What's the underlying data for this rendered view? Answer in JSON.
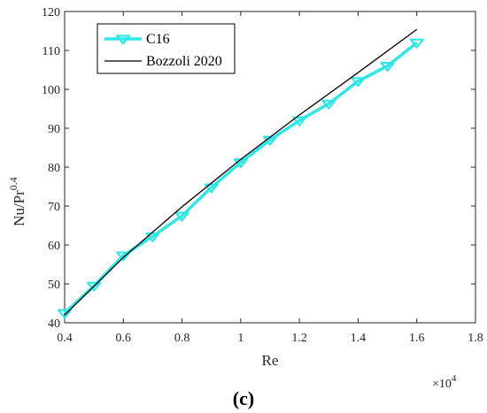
{
  "chart_data": {
    "type": "line",
    "xlabel": "Re",
    "ylabel_base": "Nu/Pr",
    "ylabel_exp": "0.4",
    "x_multiplier": "×10",
    "x_multiplier_exp": "4",
    "xlim": [
      0.4,
      1.8
    ],
    "ylim": [
      40,
      120
    ],
    "xticks": [
      "0.4",
      "0.6",
      "0.8",
      "1",
      "1.2",
      "1.4",
      "1.6",
      "1.8"
    ],
    "yticks": [
      "40",
      "50",
      "60",
      "70",
      "80",
      "90",
      "100",
      "110",
      "120"
    ],
    "grid": false,
    "legend_position": "top-left",
    "series": [
      {
        "name": "C16",
        "color": "#33e6e6",
        "marker": "triangle-down",
        "x": [
          0.4,
          0.5,
          0.6,
          0.7,
          0.8,
          0.9,
          1.0,
          1.1,
          1.2,
          1.3,
          1.4,
          1.5,
          1.6
        ],
        "y": [
          42.5,
          49.5,
          57.3,
          62.2,
          67.5,
          74.8,
          81.2,
          87.0,
          92.0,
          96.3,
          102.1,
          106.0,
          112.0
        ]
      },
      {
        "name": "Bozzoli 2020",
        "color": "#000000",
        "marker": "none",
        "x": [
          0.4,
          0.6,
          0.8,
          1.0,
          1.2,
          1.4,
          1.6
        ],
        "y": [
          42.0,
          56.8,
          69.8,
          82.0,
          93.4,
          104.3,
          115.4
        ]
      }
    ],
    "panel_label": "(c)"
  }
}
